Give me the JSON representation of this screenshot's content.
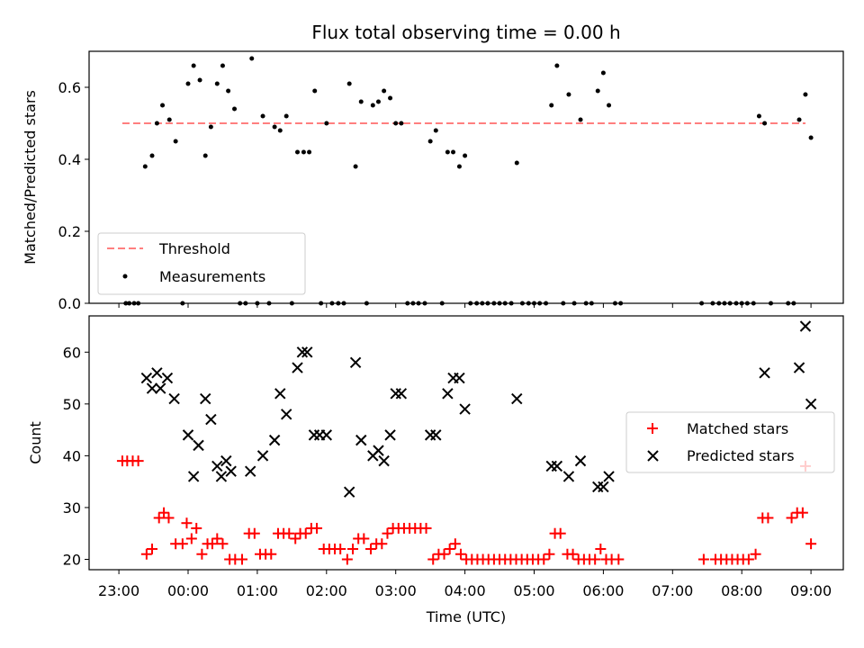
{
  "chart_data": [
    {
      "type": "scatter",
      "title": "Flux total observing time = 0.00 h",
      "xlabel": "",
      "ylabel": "Matched/Predicted stars",
      "xlim": [
        -1.4,
        9.5
      ],
      "ylim": [
        0.0,
        0.7
      ],
      "yticks": [
        0.0,
        0.2,
        0.4,
        0.6
      ],
      "ytick_labels": [
        "0.0",
        "0.2",
        "0.4",
        "0.6"
      ],
      "grid": false,
      "legend_position": "lower-left",
      "legend": [
        "Threshold",
        "Measurements"
      ],
      "threshold": {
        "name": "Threshold",
        "value": 0.5,
        "x_range": [
          -0.95,
          9.85
        ],
        "color": "#ff7f7f"
      },
      "series": [
        {
          "name": "Measurements",
          "color": "#000000",
          "points": [
            [
              -0.9,
              0
            ],
            [
              -0.85,
              0
            ],
            [
              -0.78,
              0
            ],
            [
              -0.72,
              0
            ],
            [
              -0.62,
              0.38
            ],
            [
              -0.52,
              0.41
            ],
            [
              -0.45,
              0.5
            ],
            [
              -0.37,
              0.55
            ],
            [
              -0.27,
              0.51
            ],
            [
              -0.18,
              0.45
            ],
            [
              -0.08,
              0
            ],
            [
              0.0,
              0.61
            ],
            [
              0.08,
              0.66
            ],
            [
              0.17,
              0.62
            ],
            [
              0.25,
              0.41
            ],
            [
              0.33,
              0.49
            ],
            [
              0.42,
              0.61
            ],
            [
              0.5,
              0.66
            ],
            [
              0.58,
              0.59
            ],
            [
              0.67,
              0.54
            ],
            [
              0.75,
              0
            ],
            [
              0.83,
              0
            ],
            [
              0.92,
              0.68
            ],
            [
              1.0,
              0
            ],
            [
              1.08,
              0.52
            ],
            [
              1.17,
              0
            ],
            [
              1.25,
              0.49
            ],
            [
              1.33,
              0.48
            ],
            [
              1.42,
              0.52
            ],
            [
              1.5,
              0
            ],
            [
              1.58,
              0.42
            ],
            [
              1.67,
              0.42
            ],
            [
              1.75,
              0.42
            ],
            [
              1.83,
              0.59
            ],
            [
              1.92,
              0
            ],
            [
              2.0,
              0.5
            ],
            [
              2.08,
              0
            ],
            [
              2.17,
              0
            ],
            [
              2.25,
              0
            ],
            [
              2.33,
              0.61
            ],
            [
              2.42,
              0.38
            ],
            [
              2.5,
              0.56
            ],
            [
              2.58,
              0
            ],
            [
              2.67,
              0.55
            ],
            [
              2.75,
              0.56
            ],
            [
              2.83,
              0.59
            ],
            [
              2.92,
              0.57
            ],
            [
              3.0,
              0.5
            ],
            [
              3.08,
              0.5
            ],
            [
              3.17,
              0
            ],
            [
              3.25,
              0
            ],
            [
              3.33,
              0
            ],
            [
              3.42,
              0
            ],
            [
              3.5,
              0.45
            ],
            [
              3.58,
              0.48
            ],
            [
              3.67,
              0
            ],
            [
              3.75,
              0.42
            ],
            [
              3.83,
              0.42
            ],
            [
              3.92,
              0.38
            ],
            [
              4.0,
              0.41
            ],
            [
              4.08,
              0
            ],
            [
              4.17,
              0
            ],
            [
              4.25,
              0
            ],
            [
              4.33,
              0
            ],
            [
              4.42,
              0
            ],
            [
              4.5,
              0
            ],
            [
              4.58,
              0
            ],
            [
              4.67,
              0
            ],
            [
              4.75,
              0.39
            ],
            [
              4.83,
              0
            ],
            [
              4.92,
              0
            ],
            [
              5.0,
              0
            ],
            [
              5.08,
              0
            ],
            [
              5.17,
              0
            ],
            [
              5.25,
              0.55
            ],
            [
              5.33,
              0.66
            ],
            [
              5.42,
              0
            ],
            [
              5.5,
              0.58
            ],
            [
              5.58,
              0
            ],
            [
              5.67,
              0.51
            ],
            [
              5.75,
              0
            ],
            [
              5.83,
              0
            ],
            [
              5.92,
              0.59
            ],
            [
              6.0,
              0.64
            ],
            [
              6.08,
              0.55
            ],
            [
              6.17,
              0
            ],
            [
              6.25,
              0
            ],
            [
              7.42,
              0
            ],
            [
              7.58,
              0
            ],
            [
              7.67,
              0
            ],
            [
              7.75,
              0
            ],
            [
              7.83,
              0
            ],
            [
              7.92,
              0
            ],
            [
              8.0,
              0
            ],
            [
              8.08,
              0
            ],
            [
              8.17,
              0
            ],
            [
              8.25,
              0.52
            ],
            [
              8.33,
              0.5
            ],
            [
              8.42,
              0
            ],
            [
              8.67,
              0
            ],
            [
              8.75,
              0
            ],
            [
              8.83,
              0.51
            ],
            [
              8.92,
              0.58
            ],
            [
              9.0,
              0.46
            ]
          ]
        }
      ]
    },
    {
      "type": "scatter",
      "title": "",
      "xlabel": "Time (UTC)",
      "ylabel": "Count",
      "xlim": [
        -1.4,
        9.5
      ],
      "ylim": [
        18,
        67
      ],
      "yticks": [
        20,
        30,
        40,
        50,
        60
      ],
      "ytick_labels": [
        "20",
        "30",
        "40",
        "50",
        "60"
      ],
      "xticks": [
        -1,
        0,
        1,
        2,
        3,
        4,
        5,
        6,
        7,
        8,
        9
      ],
      "xtick_labels": [
        "23:00",
        "00:00",
        "01:00",
        "02:00",
        "03:00",
        "04:00",
        "05:00",
        "06:00",
        "07:00",
        "08:00",
        "09:00"
      ],
      "grid": false,
      "legend_position": "center-right",
      "legend": [
        "Matched stars",
        "Predicted stars"
      ],
      "series": [
        {
          "name": "Matched stars",
          "marker": "+",
          "color": "#ff0000",
          "points": [
            [
              -0.95,
              39
            ],
            [
              -0.88,
              39
            ],
            [
              -0.8,
              39
            ],
            [
              -0.72,
              39
            ],
            [
              -0.6,
              21
            ],
            [
              -0.52,
              22
            ],
            [
              -0.42,
              28
            ],
            [
              -0.35,
              29
            ],
            [
              -0.28,
              28
            ],
            [
              -0.18,
              23
            ],
            [
              -0.08,
              23
            ],
            [
              -0.02,
              27
            ],
            [
              0.05,
              24
            ],
            [
              0.12,
              26
            ],
            [
              0.2,
              21
            ],
            [
              0.28,
              23
            ],
            [
              0.35,
              23
            ],
            [
              0.42,
              24
            ],
            [
              0.5,
              23
            ],
            [
              0.6,
              20
            ],
            [
              0.68,
              20
            ],
            [
              0.78,
              20
            ],
            [
              0.88,
              25
            ],
            [
              0.96,
              25
            ],
            [
              1.04,
              21
            ],
            [
              1.12,
              21
            ],
            [
              1.2,
              21
            ],
            [
              1.3,
              25
            ],
            [
              1.38,
              25
            ],
            [
              1.46,
              25
            ],
            [
              1.55,
              24
            ],
            [
              1.62,
              25
            ],
            [
              1.7,
              25
            ],
            [
              1.78,
              26
            ],
            [
              1.86,
              26
            ],
            [
              1.96,
              22
            ],
            [
              2.04,
              22
            ],
            [
              2.12,
              22
            ],
            [
              2.2,
              22
            ],
            [
              2.3,
              20
            ],
            [
              2.38,
              22
            ],
            [
              2.46,
              24
            ],
            [
              2.54,
              24
            ],
            [
              2.64,
              22
            ],
            [
              2.72,
              23
            ],
            [
              2.8,
              23
            ],
            [
              2.88,
              25
            ],
            [
              2.96,
              26
            ],
            [
              3.04,
              26
            ],
            [
              3.12,
              26
            ],
            [
              3.2,
              26
            ],
            [
              3.28,
              26
            ],
            [
              3.36,
              26
            ],
            [
              3.44,
              26
            ],
            [
              3.54,
              20
            ],
            [
              3.62,
              21
            ],
            [
              3.7,
              21
            ],
            [
              3.78,
              22
            ],
            [
              3.86,
              23
            ],
            [
              3.94,
              21
            ],
            [
              4.02,
              20
            ],
            [
              4.1,
              20
            ],
            [
              4.18,
              20
            ],
            [
              4.26,
              20
            ],
            [
              4.34,
              20
            ],
            [
              4.42,
              20
            ],
            [
              4.5,
              20
            ],
            [
              4.58,
              20
            ],
            [
              4.66,
              20
            ],
            [
              4.74,
              20
            ],
            [
              4.82,
              20
            ],
            [
              4.9,
              20
            ],
            [
              4.98,
              20
            ],
            [
              5.06,
              20
            ],
            [
              5.14,
              20
            ],
            [
              5.22,
              21
            ],
            [
              5.3,
              25
            ],
            [
              5.38,
              25
            ],
            [
              5.48,
              21
            ],
            [
              5.56,
              21
            ],
            [
              5.64,
              20
            ],
            [
              5.72,
              20
            ],
            [
              5.8,
              20
            ],
            [
              5.88,
              20
            ],
            [
              5.96,
              22
            ],
            [
              6.04,
              20
            ],
            [
              6.12,
              20
            ],
            [
              6.22,
              20
            ],
            [
              7.45,
              20
            ],
            [
              7.62,
              20
            ],
            [
              7.7,
              20
            ],
            [
              7.78,
              20
            ],
            [
              7.86,
              20
            ],
            [
              7.94,
              20
            ],
            [
              8.02,
              20
            ],
            [
              8.1,
              20
            ],
            [
              8.2,
              21
            ],
            [
              8.3,
              28
            ],
            [
              8.38,
              28
            ],
            [
              8.72,
              28
            ],
            [
              8.8,
              29
            ],
            [
              8.88,
              29
            ],
            [
              8.92,
              38
            ],
            [
              9.0,
              23
            ]
          ]
        },
        {
          "name": "Predicted stars",
          "marker": "x",
          "color": "#000000",
          "points": [
            [
              -0.6,
              55
            ],
            [
              -0.52,
              53
            ],
            [
              -0.45,
              56
            ],
            [
              -0.4,
              53
            ],
            [
              -0.3,
              55
            ],
            [
              -0.2,
              51
            ],
            [
              0.0,
              44
            ],
            [
              0.08,
              36
            ],
            [
              0.15,
              42
            ],
            [
              0.25,
              51
            ],
            [
              0.33,
              47
            ],
            [
              0.42,
              38
            ],
            [
              0.48,
              36
            ],
            [
              0.55,
              39
            ],
            [
              0.62,
              37
            ],
            [
              0.9,
              37
            ],
            [
              1.08,
              40
            ],
            [
              1.25,
              43
            ],
            [
              1.33,
              52
            ],
            [
              1.42,
              48
            ],
            [
              1.58,
              57
            ],
            [
              1.65,
              60
            ],
            [
              1.72,
              60
            ],
            [
              1.82,
              44
            ],
            [
              1.9,
              44
            ],
            [
              2.0,
              44
            ],
            [
              2.33,
              33
            ],
            [
              2.42,
              58
            ],
            [
              2.5,
              43
            ],
            [
              2.67,
              40
            ],
            [
              2.75,
              41
            ],
            [
              2.83,
              39
            ],
            [
              2.92,
              44
            ],
            [
              3.0,
              52
            ],
            [
              3.08,
              52
            ],
            [
              3.5,
              44
            ],
            [
              3.58,
              44
            ],
            [
              3.75,
              52
            ],
            [
              3.83,
              55
            ],
            [
              3.92,
              55
            ],
            [
              4.0,
              49
            ],
            [
              4.75,
              51
            ],
            [
              5.25,
              38
            ],
            [
              5.33,
              38
            ],
            [
              5.5,
              36
            ],
            [
              5.67,
              39
            ],
            [
              5.92,
              34
            ],
            [
              6.0,
              34
            ],
            [
              6.08,
              36
            ],
            [
              8.33,
              56
            ],
            [
              8.83,
              57
            ],
            [
              8.92,
              65
            ],
            [
              9.0,
              50
            ]
          ]
        }
      ]
    }
  ]
}
